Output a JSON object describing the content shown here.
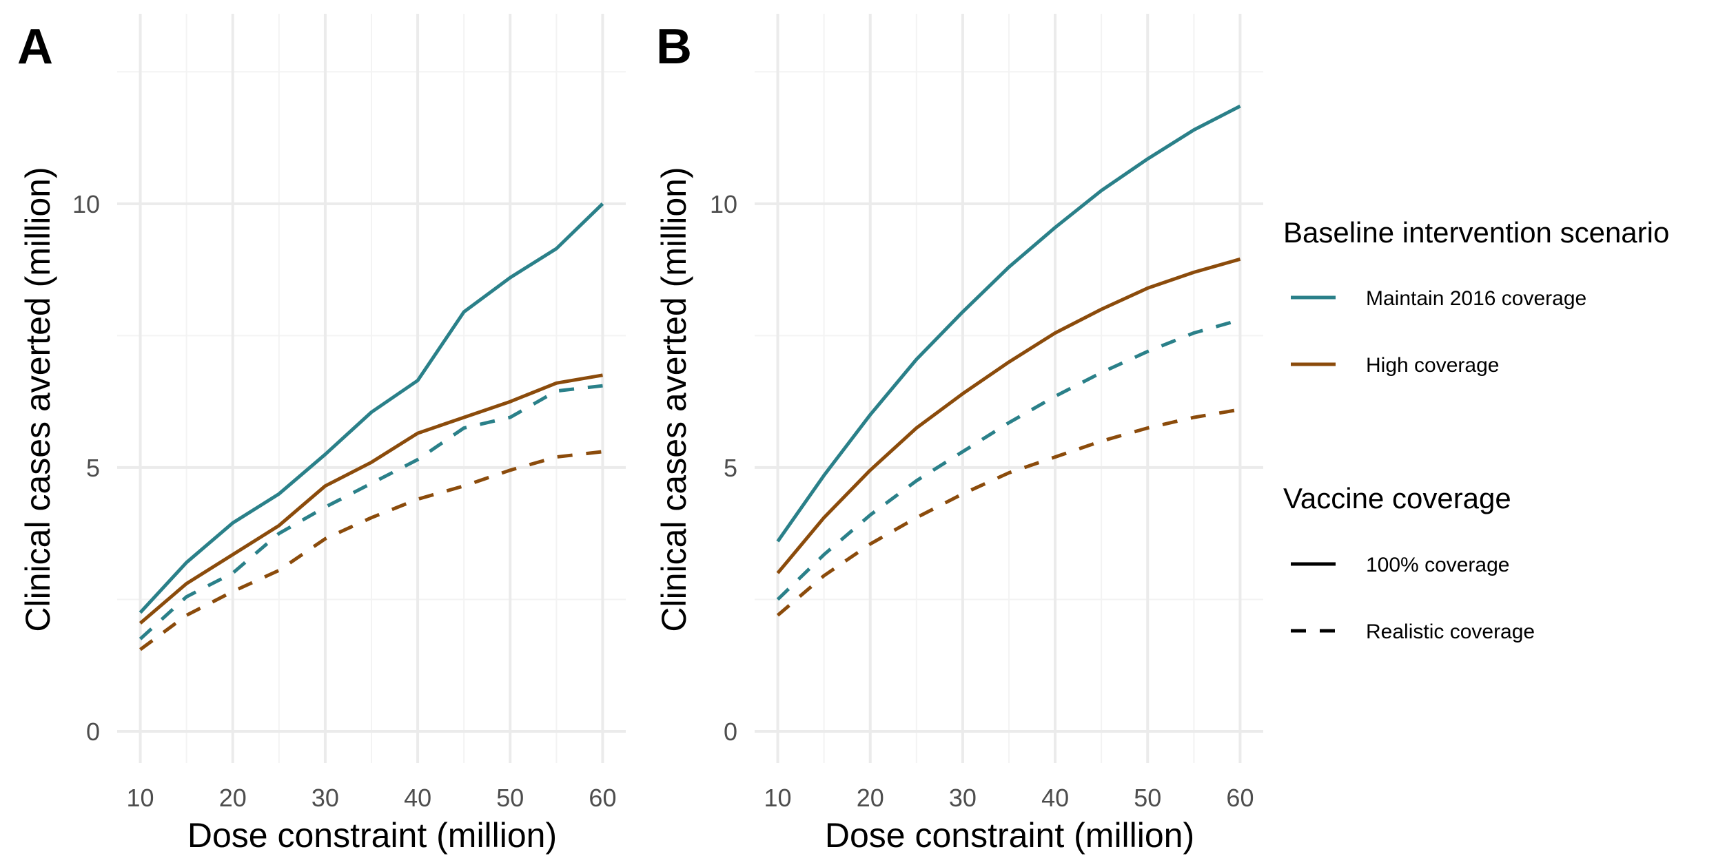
{
  "chart_data": [
    {
      "type": "line",
      "panel_label": "A",
      "xlabel": "Dose constraint (million)",
      "ylabel": "Clinical cases averted (million)",
      "x": [
        10,
        15,
        20,
        25,
        30,
        35,
        40,
        45,
        50,
        55,
        60
      ],
      "xticks": [
        10,
        20,
        30,
        40,
        50,
        60
      ],
      "yticks": [
        0,
        5,
        10
      ],
      "xlim": [
        7.5,
        62.5
      ],
      "ylim": [
        -0.6,
        13.6
      ],
      "grid": true,
      "series": [
        {
          "scenario": "Maintain 2016 coverage",
          "coverage": "100% coverage",
          "color": "#2a8089",
          "dash": "solid",
          "values": [
            2.25,
            3.2,
            3.95,
            4.5,
            5.25,
            6.05,
            6.65,
            7.95,
            8.6,
            9.15,
            10.0
          ]
        },
        {
          "scenario": "High coverage",
          "coverage": "100% coverage",
          "color": "#8b4b0b",
          "dash": "solid",
          "values": [
            2.05,
            2.8,
            3.35,
            3.9,
            4.65,
            5.1,
            5.65,
            5.95,
            6.25,
            6.6,
            6.75
          ]
        },
        {
          "scenario": "Maintain 2016 coverage",
          "coverage": "Realistic coverage",
          "color": "#2a8089",
          "dash": "dashed",
          "values": [
            1.75,
            2.55,
            3.0,
            3.75,
            4.25,
            4.7,
            5.15,
            5.75,
            5.95,
            6.45,
            6.55
          ]
        },
        {
          "scenario": "High coverage",
          "coverage": "Realistic coverage",
          "color": "#8b4b0b",
          "dash": "dashed",
          "values": [
            1.55,
            2.2,
            2.65,
            3.05,
            3.65,
            4.05,
            4.4,
            4.65,
            4.95,
            5.2,
            5.3
          ]
        }
      ]
    },
    {
      "type": "line",
      "panel_label": "B",
      "xlabel": "Dose constraint (million)",
      "ylabel": "Clinical cases averted (million)",
      "x": [
        10,
        15,
        20,
        25,
        30,
        35,
        40,
        45,
        50,
        55,
        60
      ],
      "xticks": [
        10,
        20,
        30,
        40,
        50,
        60
      ],
      "yticks": [
        0,
        5,
        10
      ],
      "xlim": [
        7.5,
        62.5
      ],
      "ylim": [
        -0.6,
        13.6
      ],
      "grid": true,
      "series": [
        {
          "scenario": "Maintain 2016 coverage",
          "coverage": "100% coverage",
          "color": "#2a8089",
          "dash": "solid",
          "values": [
            3.6,
            4.85,
            6.0,
            7.05,
            7.95,
            8.8,
            9.55,
            10.25,
            10.85,
            11.4,
            11.85
          ]
        },
        {
          "scenario": "High coverage",
          "coverage": "100% coverage",
          "color": "#8b4b0b",
          "dash": "solid",
          "values": [
            3.0,
            4.05,
            4.95,
            5.75,
            6.4,
            7.0,
            7.55,
            8.0,
            8.4,
            8.7,
            8.95
          ]
        },
        {
          "scenario": "Maintain 2016 coverage",
          "coverage": "Realistic coverage",
          "color": "#2a8089",
          "dash": "dashed",
          "values": [
            2.5,
            3.35,
            4.1,
            4.75,
            5.3,
            5.85,
            6.35,
            6.8,
            7.2,
            7.55,
            7.8
          ]
        },
        {
          "scenario": "High coverage",
          "coverage": "Realistic coverage",
          "color": "#8b4b0b",
          "dash": "dashed",
          "values": [
            2.2,
            2.95,
            3.55,
            4.05,
            4.5,
            4.9,
            5.2,
            5.5,
            5.75,
            5.95,
            6.1
          ]
        }
      ]
    }
  ],
  "legend": {
    "placement": "right",
    "scenario_title": "Baseline intervention scenario",
    "scenario_items": [
      {
        "label": "Maintain 2016 coverage",
        "color": "#2a8089"
      },
      {
        "label": "High coverage",
        "color": "#8b4b0b"
      }
    ],
    "coverage_title": "Vaccine coverage",
    "coverage_items": [
      {
        "label": "100% coverage",
        "dash": "solid"
      },
      {
        "label": "Realistic coverage",
        "dash": "dashed"
      }
    ]
  }
}
